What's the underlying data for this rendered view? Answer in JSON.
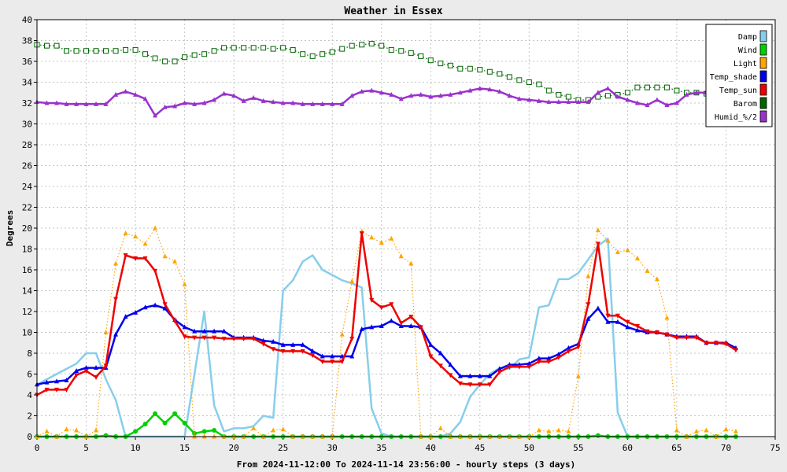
{
  "chart_data": {
    "type": "line",
    "title": "Weather in Essex",
    "ylabel": "Degrees",
    "xlabel": "From 2024-11-12:00 To 2024-11-14 23:56:00 - hourly steps (3 days)",
    "xlim": [
      0,
      75
    ],
    "ylim": [
      0,
      40
    ],
    "xticks": [
      0,
      5,
      10,
      15,
      20,
      25,
      30,
      35,
      40,
      45,
      50,
      55,
      60,
      65,
      70,
      75
    ],
    "yticks": [
      0,
      2,
      4,
      6,
      8,
      10,
      12,
      14,
      16,
      18,
      20,
      22,
      24,
      26,
      28,
      30,
      32,
      34,
      36,
      38,
      40
    ],
    "grid": true,
    "legend_position": "top-right",
    "x": [
      0,
      1,
      2,
      3,
      4,
      5,
      6,
      7,
      8,
      9,
      10,
      11,
      12,
      13,
      14,
      15,
      16,
      17,
      18,
      19,
      20,
      21,
      22,
      23,
      24,
      25,
      26,
      27,
      28,
      29,
      30,
      31,
      32,
      33,
      34,
      35,
      36,
      37,
      38,
      39,
      40,
      41,
      42,
      43,
      44,
      45,
      46,
      47,
      48,
      49,
      50,
      51,
      52,
      53,
      54,
      55,
      56,
      57,
      58,
      59,
      60,
      61,
      62,
      63,
      64,
      65,
      66,
      67,
      68,
      69,
      70,
      71
    ],
    "series": [
      {
        "name": "Damp",
        "color": "#87ceeb",
        "style": "line",
        "marker": "none",
        "values": [
          5,
          5.5,
          6,
          6.5,
          7,
          8,
          8,
          5.5,
          3.5,
          0,
          0,
          0,
          0,
          0,
          0,
          0,
          6,
          12,
          3,
          0.5,
          0.8,
          0.8,
          1,
          2,
          1.8,
          14,
          15,
          16.8,
          17.4,
          16,
          15.5,
          15,
          14.7,
          14.3,
          2.7,
          0.3,
          0,
          0,
          0,
          0,
          0,
          0,
          0.3,
          1.4,
          3.8,
          5,
          6,
          6.6,
          6.5,
          7.4,
          7.6,
          12.4,
          12.6,
          15.1,
          15.1,
          15.7,
          17,
          18.3,
          19,
          2.3,
          0,
          0,
          0,
          0,
          0,
          0,
          0,
          0,
          0,
          0,
          0,
          0
        ]
      },
      {
        "name": "Wind",
        "color": "#00d000",
        "style": "line",
        "marker": "dot",
        "values": [
          0,
          0,
          0,
          0,
          0,
          0,
          0,
          0.1,
          0,
          0,
          0.5,
          1.2,
          2.2,
          1.3,
          2.2,
          1.3,
          0.3,
          0.5,
          0.6,
          0,
          0,
          0,
          0,
          0,
          0,
          0,
          0,
          0,
          0,
          0,
          0,
          0,
          0,
          0,
          0,
          0,
          0,
          0,
          0,
          0,
          0,
          0,
          0,
          0,
          0,
          0,
          0,
          0,
          0,
          0,
          0,
          0,
          0,
          0,
          0,
          0,
          0,
          0.1,
          0,
          0,
          0,
          0,
          0,
          0,
          0,
          0,
          0,
          0,
          0,
          0,
          0,
          0
        ]
      },
      {
        "name": "Light",
        "color": "#ffa500",
        "style": "dotted",
        "marker": "triangle",
        "values": [
          0,
          0.5,
          0,
          0.7,
          0.6,
          0,
          0.6,
          10,
          16.6,
          19.5,
          19.2,
          18.5,
          20,
          17.3,
          16.8,
          14.6,
          0,
          0,
          0,
          0,
          0,
          0,
          0.8,
          0,
          0.6,
          0.7,
          0,
          0,
          0,
          0,
          0,
          9.8,
          14.9,
          19.7,
          19.1,
          18.6,
          19,
          17.3,
          16.6,
          0,
          0,
          0.8,
          0,
          0,
          0,
          0,
          0,
          0,
          0,
          0,
          0,
          0.6,
          0.5,
          0.6,
          0.5,
          5.8,
          15.4,
          19.8,
          18.8,
          17.7,
          17.9,
          17.1,
          15.9,
          15.1,
          11.4,
          0.6,
          0,
          0.5,
          0.6,
          0,
          0.7,
          0.5
        ]
      },
      {
        "name": "Temp_shade",
        "color": "#0000ee",
        "style": "line",
        "marker": "triangle",
        "values": [
          5,
          5.2,
          5.3,
          5.4,
          6.3,
          6.6,
          6.6,
          6.6,
          9.8,
          11.5,
          11.9,
          12.4,
          12.6,
          12.3,
          11.2,
          10.5,
          10.1,
          10.1,
          10.1,
          10.1,
          9.5,
          9.5,
          9.5,
          9.2,
          9.1,
          8.8,
          8.8,
          8.8,
          8.2,
          7.7,
          7.7,
          7.7,
          7.7,
          10.3,
          10.5,
          10.6,
          11.1,
          10.6,
          10.6,
          10.5,
          8.8,
          8,
          6.9,
          5.8,
          5.8,
          5.8,
          5.8,
          6.5,
          6.9,
          6.9,
          7,
          7.5,
          7.5,
          7.9,
          8.5,
          8.9,
          11.3,
          12.3,
          11,
          11,
          10.5,
          10.2,
          10,
          10,
          9.8,
          9.6,
          9.6,
          9.6,
          9,
          9,
          9,
          8.5
        ]
      },
      {
        "name": "Temp_sun",
        "color": "#ee0000",
        "style": "line",
        "marker": "triangle-down",
        "values": [
          4,
          4.5,
          4.5,
          4.5,
          5.9,
          6.3,
          5.7,
          6.8,
          13.2,
          17.4,
          17.1,
          17.1,
          15.9,
          12.7,
          11.1,
          9.6,
          9.5,
          9.5,
          9.5,
          9.4,
          9.4,
          9.4,
          9.4,
          8.9,
          8.4,
          8.2,
          8.2,
          8.2,
          7.8,
          7.2,
          7.2,
          7.2,
          9.4,
          19.5,
          13.1,
          12.4,
          12.7,
          10.9,
          11.5,
          10.5,
          7.7,
          6.8,
          5.9,
          5.1,
          5,
          5,
          5,
          6.2,
          6.7,
          6.7,
          6.7,
          7.2,
          7.2,
          7.6,
          8.2,
          8.6,
          12.7,
          18.5,
          11.6,
          11.6,
          11,
          10.6,
          10.1,
          10,
          9.8,
          9.5,
          9.5,
          9.5,
          9,
          9,
          8.9,
          8.3
        ]
      },
      {
        "name": "Barom",
        "color": "#006400",
        "style": "dotted",
        "marker": "square",
        "values": [
          37.6,
          37.5,
          37.5,
          37,
          37,
          37,
          37,
          37,
          37,
          37.1,
          37.1,
          36.7,
          36.3,
          36,
          36,
          36.4,
          36.6,
          36.7,
          37,
          37.3,
          37.3,
          37.3,
          37.3,
          37.3,
          37.2,
          37.3,
          37.1,
          36.7,
          36.5,
          36.7,
          36.9,
          37.2,
          37.5,
          37.6,
          37.7,
          37.5,
          37.1,
          37,
          36.8,
          36.5,
          36.1,
          35.8,
          35.6,
          35.3,
          35.3,
          35.2,
          35,
          34.8,
          34.5,
          34.2,
          34,
          33.8,
          33.2,
          32.8,
          32.6,
          32.3,
          32.3,
          32.6,
          32.7,
          32.8,
          33,
          33.5,
          33.5,
          33.5,
          33.5,
          33.2,
          33,
          33,
          32.9,
          33,
          33,
          33.1
        ]
      },
      {
        "name": "Humid_%/2",
        "color": "#9932cc",
        "style": "line",
        "marker": "triangle",
        "values": [
          32.1,
          32,
          32,
          31.9,
          31.9,
          31.9,
          31.9,
          31.9,
          32.8,
          33.1,
          32.8,
          32.4,
          30.8,
          31.6,
          31.7,
          32,
          31.9,
          32,
          32.3,
          32.9,
          32.7,
          32.2,
          32.5,
          32.2,
          32.1,
          32,
          32,
          31.9,
          31.9,
          31.9,
          31.9,
          31.9,
          32.7,
          33.1,
          33.2,
          33,
          32.8,
          32.4,
          32.7,
          32.8,
          32.6,
          32.7,
          32.8,
          33,
          33.2,
          33.4,
          33.3,
          33.1,
          32.7,
          32.4,
          32.3,
          32.2,
          32.1,
          32.1,
          32.1,
          32.1,
          32.1,
          33,
          33.4,
          32.6,
          32.3,
          32,
          31.8,
          32.3,
          31.8,
          32,
          32.8,
          33,
          33,
          33.1,
          33.1,
          33.3
        ]
      }
    ]
  }
}
